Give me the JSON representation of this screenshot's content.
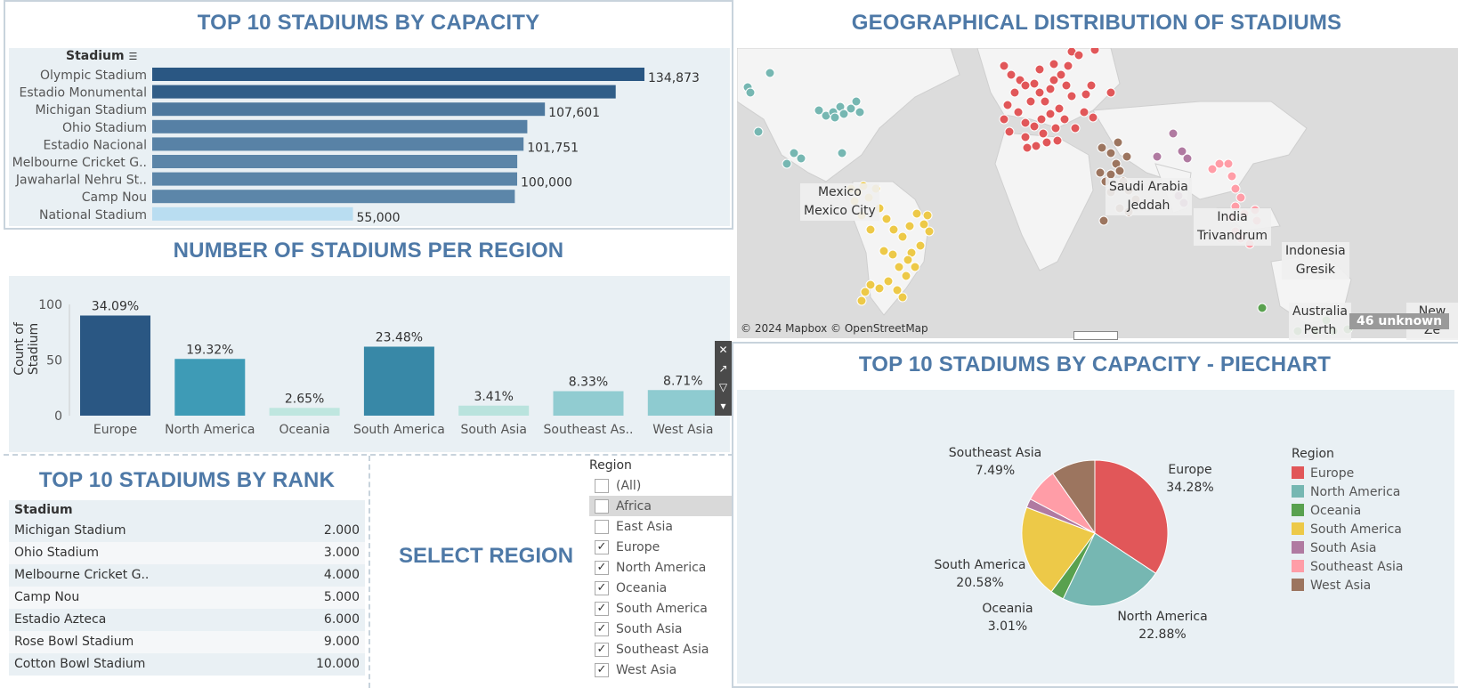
{
  "titles": {
    "top10_capacity": "TOP 10 STADIUMS BY CAPACITY",
    "per_region": "NUMBER OF STADIUMS PER REGION",
    "top10_rank": "TOP 10 STADIUMS BY RANK",
    "select_region": "SELECT REGION",
    "geo": "GEOGRAPHICAL DISTRIBUTION OF STADIUMS",
    "piechart": "TOP 10 STADIUMS BY CAPACITY - PIECHART"
  },
  "capacity_chart": {
    "header": "Stadium",
    "sort_icon": "sort-icon"
  },
  "region_chart": {
    "ylabel": "Count of Stadium",
    "yticks": [
      "0",
      "50",
      "100"
    ]
  },
  "rank_table": {
    "header": "Stadium",
    "rows": [
      {
        "name": "Michigan Stadium",
        "rank": "2.000"
      },
      {
        "name": "Ohio Stadium",
        "rank": "3.000"
      },
      {
        "name": "Melbourne Cricket G..",
        "rank": "4.000"
      },
      {
        "name": "Camp Nou",
        "rank": "5.000"
      },
      {
        "name": "Estadio Azteca",
        "rank": "6.000"
      },
      {
        "name": "Rose Bowl Stadium",
        "rank": "9.000"
      },
      {
        "name": "Cotton Bowl Stadium",
        "rank": "10.000"
      }
    ]
  },
  "filter": {
    "title": "Region",
    "items": [
      {
        "label": "(All)",
        "checked": false
      },
      {
        "label": "Africa",
        "checked": false
      },
      {
        "label": "East Asia",
        "checked": false
      },
      {
        "label": "Europe",
        "checked": true
      },
      {
        "label": "North America",
        "checked": true
      },
      {
        "label": "Oceania",
        "checked": true
      },
      {
        "label": "South America",
        "checked": true
      },
      {
        "label": "South Asia",
        "checked": true
      },
      {
        "label": "Southeast Asia",
        "checked": true
      },
      {
        "label": "West Asia",
        "checked": true
      }
    ]
  },
  "map": {
    "attribution": "© 2024 Mapbox © OpenStreetMap",
    "unknown_badge": "46 unknown",
    "labels": [
      {
        "lines": [
          "Mexico",
          "Mexico City"
        ]
      },
      {
        "lines": [
          "Saudi Arabia",
          "Jeddah"
        ]
      },
      {
        "lines": [
          "India",
          "Trivandrum"
        ]
      },
      {
        "lines": [
          "Indonesia",
          "Gresik"
        ]
      },
      {
        "lines": [
          "Australia",
          "Perth"
        ]
      },
      {
        "lines": [
          "New Ze"
        ]
      }
    ]
  },
  "colors": {
    "title": "#4e79a7",
    "Europe": "#e15759",
    "North America": "#76b7b2",
    "Oceania": "#59a14f",
    "South America": "#edc948",
    "South Asia": "#b07aa1",
    "Southeast Asia": "#ff9da7",
    "West Asia": "#9c755f"
  },
  "chart_data": [
    {
      "type": "bar",
      "orientation": "horizontal",
      "title": "TOP 10 STADIUMS BY CAPACITY",
      "categories": [
        "Olympic Stadium",
        "Estadio Monumental",
        "Michigan Stadium",
        "Ohio Stadium",
        "Estadio Nacional",
        "Melbourne Cricket G..",
        "Jawaharlal Nehru St..",
        "Camp Nou",
        "National Stadium"
      ],
      "values": [
        134873,
        127000,
        107601,
        102780,
        101751,
        100024,
        100000,
        99354,
        55000
      ],
      "data_labels": [
        "134,873",
        "",
        "107,601",
        "",
        "101,751",
        "",
        "100,000",
        "",
        "55,000"
      ],
      "xlim": [
        0,
        150000
      ]
    },
    {
      "type": "bar",
      "title": "NUMBER OF STADIUMS PER REGION",
      "categories": [
        "Europe",
        "North America",
        "Oceania",
        "South America",
        "South Asia",
        "Southeast As..",
        "West Asia"
      ],
      "values": [
        90,
        51,
        7,
        62,
        9,
        22,
        23
      ],
      "data_labels": [
        "34.09%",
        "19.32%",
        "2.65%",
        "23.48%",
        "3.41%",
        "8.33%",
        "8.71%"
      ],
      "ylabel": "Count of Stadium",
      "ylim": [
        0,
        105
      ]
    },
    {
      "type": "pie",
      "title": "TOP 10 STADIUMS BY CAPACITY - PIECHART",
      "legend_title": "Region",
      "legend_position": "right",
      "slices": [
        {
          "name": "Europe",
          "value": 34.28,
          "label": "Europe\n34.28%"
        },
        {
          "name": "North America",
          "value": 22.88,
          "label": "North America\n22.88%"
        },
        {
          "name": "Oceania",
          "value": 3.01,
          "label": "Oceania\n3.01%"
        },
        {
          "name": "South America",
          "value": 20.58,
          "label": "South America\n20.58%"
        },
        {
          "name": "South Asia",
          "value": 2.0,
          "label": ""
        },
        {
          "name": "Southeast Asia",
          "value": 7.49,
          "label": "Southeast Asia\n7.49%"
        },
        {
          "name": "West Asia",
          "value": 9.76,
          "label": ""
        }
      ]
    }
  ]
}
